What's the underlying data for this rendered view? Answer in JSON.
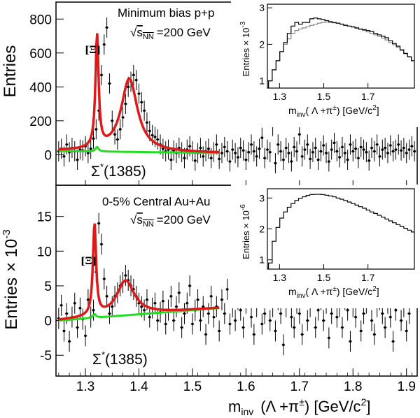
{
  "colors": {
    "fit": "#dd1a1a",
    "background_fit": "#22dd22",
    "points": "#000000",
    "mixed_event": "#888888"
  },
  "x_axis": {
    "label": "m",
    "label_sub": "inv",
    "label_rest": "(Λ +π",
    "label_sup": "±",
    "label_unit": ") [GeV/c",
    "label_unit_sup": "2",
    "label_close": "]",
    "ticks": [
      "1.3",
      "1.4",
      "1.5",
      "1.6",
      "1.7",
      "1.8",
      "1.9"
    ],
    "range": [
      1.245,
      1.92
    ]
  },
  "chart_data": [
    {
      "type": "scatter",
      "panel": "top",
      "title": "Minimum bias p+p",
      "energy_prefix": "√",
      "energy_sub": "s",
      "energy_subsub": "NN",
      "energy_value": "=200 GeV",
      "ylabel": "Entries",
      "y_ticks": [
        "0",
        "200",
        "400",
        "600",
        "800"
      ],
      "ylim": [
        -180,
        900
      ],
      "peak_label": "Ξ",
      "resonance_label": "Σ",
      "resonance_sup": "*",
      "resonance_mass": "(1385)",
      "fit": {
        "x_range": [
          1.25,
          1.55
        ],
        "xi_mass": 1.3217,
        "xi_amp": 665,
        "xi_width": 0.0035,
        "sigma_mass": 1.382,
        "sigma_amp": 430,
        "sigma_width": 0.0185,
        "bkg_level": 22,
        "bkg_slope": -40
      },
      "points": {
        "x_start": 1.25,
        "x_step": 0.005,
        "values": [
          20,
          35,
          -10,
          60,
          15,
          40,
          20,
          -30,
          30,
          25,
          50,
          10,
          35,
          95,
          150,
          260,
          470,
          650,
          750,
          420,
          200,
          120,
          90,
          150,
          220,
          300,
          400,
          430,
          470,
          440,
          360,
          310,
          260,
          190,
          140,
          115,
          105,
          90,
          60,
          35,
          20,
          30,
          -30,
          25,
          10,
          40,
          15,
          -20,
          30,
          50,
          20,
          -35,
          10,
          40,
          -10,
          20,
          35,
          -20,
          15,
          60,
          -25,
          10,
          45,
          20,
          -40,
          30,
          10,
          -15,
          40,
          25,
          -30,
          15,
          60,
          20,
          -10,
          35,
          100,
          -20,
          30,
          15,
          170,
          -50,
          60,
          20,
          -30,
          40,
          10,
          -40,
          45,
          20,
          120,
          -10,
          30,
          60,
          -25,
          15,
          40,
          -30,
          20,
          55,
          10,
          -40,
          30,
          70,
          20,
          -15,
          45,
          10,
          -30,
          60,
          20,
          35,
          -20,
          45,
          30,
          15,
          -35,
          40,
          20,
          60,
          -10,
          30,
          40,
          10,
          55,
          20,
          30,
          60,
          25,
          40,
          10,
          30,
          50,
          20
        ]
      },
      "inset": {
        "ylabel": "Entries × 10",
        "ylabel_sup": "-3",
        "y_ticks": [
          "1",
          "2",
          "3"
        ],
        "x_ticks": [
          "1.3",
          "1.5",
          "1.7"
        ],
        "ylim": [
          0.8,
          3.1
        ],
        "xlim": [
          1.245,
          1.91
        ],
        "xlabel": "m",
        "xlabel_sub": "inv",
        "xlabel_rest": "( Λ +π",
        "xlabel_sup": "±",
        "xlabel_unit": ") [GeV/c",
        "xlabel_unit_sup": "2",
        "xlabel_close": "]",
        "same_event": [
          1.0,
          1.3,
          1.55,
          1.8,
          2.05,
          2.3,
          2.5,
          2.6,
          2.55,
          2.6,
          2.6,
          2.7,
          2.72,
          2.7,
          2.68,
          2.65,
          2.62,
          2.6,
          2.58,
          2.55,
          2.52,
          2.5,
          2.48,
          2.45,
          2.42,
          2.4,
          2.38,
          2.35,
          2.3,
          2.26,
          2.22,
          2.18,
          2.1,
          2.02,
          1.95,
          1.85,
          1.75,
          1.66,
          1.55
        ],
        "mixed_event": [
          1.0,
          1.3,
          1.55,
          1.8,
          2.0,
          2.15,
          2.3,
          2.38,
          2.42,
          2.45,
          2.48,
          2.52,
          2.55,
          2.58,
          2.6,
          2.61,
          2.6,
          2.59,
          2.58,
          2.56,
          2.53,
          2.5,
          2.47,
          2.44,
          2.41,
          2.38,
          2.34,
          2.3,
          2.26,
          2.22,
          2.17,
          2.12,
          2.05,
          1.99,
          1.92,
          1.83,
          1.74,
          1.65,
          1.55
        ],
        "x_start": 1.25,
        "x_step": 0.017
      }
    },
    {
      "type": "scatter",
      "panel": "bottom",
      "title": "0-5% Central Au+Au",
      "energy_prefix": "√",
      "energy_sub": "s",
      "energy_subsub": "NN",
      "energy_value": "=200 GeV",
      "ylabel": "Entries",
      "ylabel_mult": "× 10",
      "ylabel_sup": "-3",
      "y_ticks": [
        "-5",
        "0",
        "5",
        "10",
        "15"
      ],
      "ylim": [
        -8,
        19.5
      ],
      "peak_label": "Ξ",
      "resonance_label": "Σ",
      "resonance_sup": "*",
      "resonance_mass": "(1385)",
      "fit": {
        "x_range": [
          1.25,
          1.55
        ],
        "xi_mass": 1.317,
        "xi_amp": 13.3,
        "xi_width": 0.0035,
        "sigma_mass": 1.375,
        "sigma_amp": 5.0,
        "sigma_width": 0.02,
        "bkg_level": 0.0,
        "bkg_slope": 6.0
      },
      "points": {
        "x_start": 1.25,
        "x_step": 0.005,
        "values": [
          0.3,
          2.2,
          -1.5,
          1.0,
          -3.0,
          0.5,
          2.5,
          -1.0,
          1.8,
          0.2,
          -2.2,
          3.0,
          0.5,
          1.5,
          7.0,
          14.0,
          11.0,
          6.0,
          3.5,
          1.0,
          2.0,
          3.5,
          4.0,
          5.0,
          5.5,
          6.5,
          5.8,
          5.0,
          4.5,
          3.5,
          2.5,
          2.0,
          1.5,
          3.0,
          0.5,
          1.8,
          2.5,
          0.0,
          1.2,
          2.8,
          -0.5,
          1.5,
          3.5,
          0.0,
          2.0,
          4.0,
          -1.0,
          1.0,
          2.5,
          5.0,
          -0.5,
          1.5,
          3.0,
          0.0,
          2.0,
          -2.0,
          1.0,
          3.5,
          0.5,
          2.0,
          -1.5,
          3.0,
          1.0,
          4.5,
          -0.5,
          2.0,
          0.0,
          3.0,
          1.5,
          -1.0,
          2.5,
          4.0,
          0.5,
          -2.0,
          2.0,
          3.5,
          -0.5,
          1.0,
          5.0,
          0.0,
          2.0,
          -1.5,
          3.0,
          1.0,
          -3.5,
          2.0,
          4.0,
          0.5,
          -1.0,
          2.5,
          1.0,
          -2.0,
          3.5,
          0.0,
          2.0,
          4.5,
          -1.0,
          1.5,
          3.0,
          0.0,
          2.5,
          -2.5,
          1.0,
          4.0,
          0.5,
          2.0,
          -1.0,
          3.0,
          1.5,
          -3.0,
          2.0,
          0.5,
          3.5,
          -1.5,
          1.0,
          2.5,
          4.0,
          0.0,
          -2.0,
          2.0,
          3.0,
          1.0,
          -1.0,
          2.5,
          0.5,
          -3.0,
          1.5,
          3.5,
          0.0,
          2.0,
          -1.5,
          1.0
        ]
      },
      "inset": {
        "ylabel": "Entries × 10",
        "ylabel_sup": "-6",
        "y_ticks": [
          "1",
          "2",
          "3"
        ],
        "x_ticks": [
          "1.3",
          "1.5",
          "1.7"
        ],
        "ylim": [
          0.7,
          3.3
        ],
        "xlim": [
          1.245,
          1.91
        ],
        "xlabel": "m",
        "xlabel_sub": "inv",
        "xlabel_rest": "( Λ +π",
        "xlabel_sup": "±",
        "xlabel_unit": ") [GeV/c",
        "xlabel_unit_sup": "2",
        "xlabel_close": "]",
        "same_event": [
          0.9,
          1.6,
          2.05,
          2.35,
          2.55,
          2.7,
          2.82,
          2.92,
          2.99,
          3.04,
          3.08,
          3.11,
          3.12,
          3.12,
          3.11,
          3.09,
          3.07,
          3.04,
          3.0,
          2.96,
          2.92,
          2.87,
          2.82,
          2.77,
          2.72,
          2.67,
          2.61,
          2.55,
          2.5,
          2.44,
          2.38,
          2.32,
          2.26,
          2.2,
          2.14,
          2.08,
          2.02,
          1.96,
          1.9
        ],
        "mixed_event": [],
        "x_start": 1.25,
        "x_step": 0.017
      }
    }
  ]
}
